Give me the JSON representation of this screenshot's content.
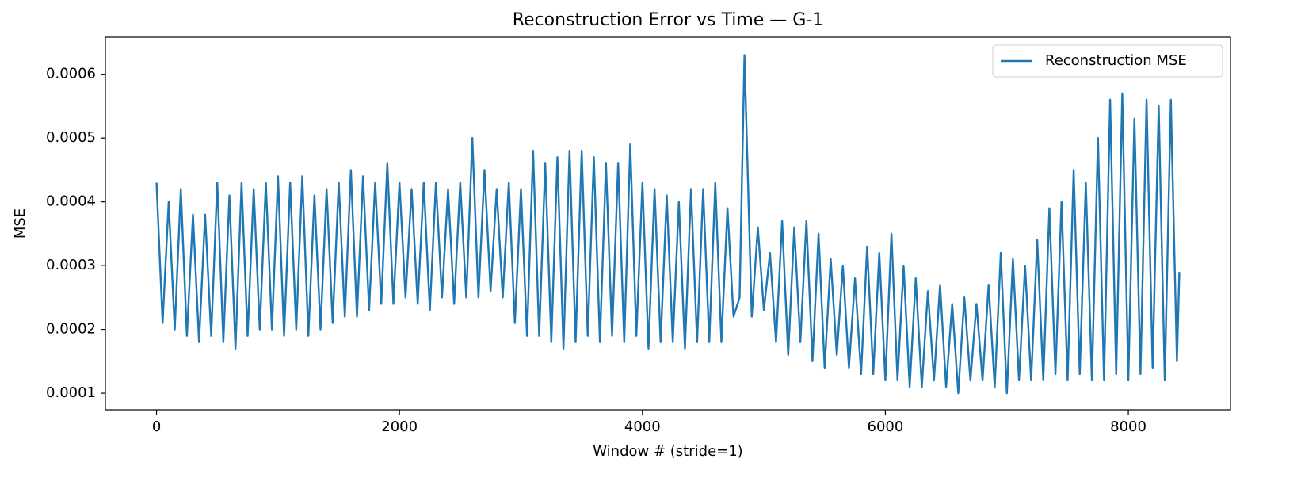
{
  "chart_data": {
    "type": "line",
    "title": "Reconstruction Error vs Time — G-1",
    "xlabel": "Window # (stride=1)",
    "ylabel": "MSE",
    "x": [
      0,
      50,
      100,
      150,
      200,
      250,
      300,
      350,
      400,
      450,
      500,
      550,
      600,
      650,
      700,
      750,
      800,
      850,
      900,
      950,
      1000,
      1050,
      1100,
      1150,
      1200,
      1250,
      1300,
      1350,
      1400,
      1450,
      1500,
      1550,
      1600,
      1650,
      1700,
      1750,
      1800,
      1850,
      1900,
      1950,
      2000,
      2050,
      2100,
      2150,
      2200,
      2250,
      2300,
      2350,
      2400,
      2450,
      2500,
      2550,
      2600,
      2650,
      2700,
      2750,
      2800,
      2850,
      2900,
      2950,
      3000,
      3050,
      3100,
      3150,
      3200,
      3250,
      3300,
      3350,
      3400,
      3450,
      3500,
      3550,
      3600,
      3650,
      3700,
      3750,
      3800,
      3850,
      3900,
      3950,
      4000,
      4050,
      4100,
      4150,
      4200,
      4250,
      4300,
      4350,
      4400,
      4450,
      4500,
      4550,
      4600,
      4650,
      4700,
      4750,
      4800,
      4840,
      4900,
      4950,
      5000,
      5050,
      5100,
      5150,
      5200,
      5250,
      5300,
      5350,
      5400,
      5450,
      5500,
      5550,
      5600,
      5650,
      5700,
      5750,
      5800,
      5850,
      5900,
      5950,
      6000,
      6050,
      6100,
      6150,
      6200,
      6250,
      6300,
      6350,
      6400,
      6450,
      6500,
      6550,
      6600,
      6650,
      6700,
      6750,
      6800,
      6850,
      6900,
      6950,
      7000,
      7050,
      7100,
      7150,
      7200,
      7250,
      7300,
      7350,
      7400,
      7450,
      7500,
      7550,
      7600,
      7650,
      7700,
      7750,
      7800,
      7850,
      7900,
      7950,
      8000,
      8050,
      8100,
      8150,
      8200,
      8250,
      8300,
      8350,
      8400,
      8420
    ],
    "series": [
      {
        "name": "Reconstruction MSE",
        "color": "#1f77b4",
        "values": [
          0.00043,
          0.00021,
          0.0004,
          0.0002,
          0.00042,
          0.00019,
          0.00038,
          0.00018,
          0.00038,
          0.00019,
          0.00043,
          0.00018,
          0.00041,
          0.00017,
          0.00043,
          0.00019,
          0.00042,
          0.0002,
          0.00043,
          0.0002,
          0.00044,
          0.00019,
          0.00043,
          0.0002,
          0.00044,
          0.00019,
          0.00041,
          0.0002,
          0.00042,
          0.00021,
          0.00043,
          0.00022,
          0.00045,
          0.00022,
          0.00044,
          0.00023,
          0.00043,
          0.00024,
          0.00046,
          0.00024,
          0.00043,
          0.00025,
          0.00042,
          0.00024,
          0.00043,
          0.00023,
          0.00043,
          0.00025,
          0.00042,
          0.00024,
          0.00043,
          0.00025,
          0.0005,
          0.00025,
          0.00045,
          0.00026,
          0.00042,
          0.00025,
          0.00043,
          0.00021,
          0.00042,
          0.00019,
          0.00048,
          0.00019,
          0.00046,
          0.00018,
          0.00047,
          0.00017,
          0.00048,
          0.00018,
          0.00048,
          0.00019,
          0.00047,
          0.00018,
          0.00046,
          0.00019,
          0.00046,
          0.00018,
          0.00049,
          0.00019,
          0.00043,
          0.00017,
          0.00042,
          0.00018,
          0.00041,
          0.00018,
          0.0004,
          0.00017,
          0.00042,
          0.00018,
          0.00042,
          0.00018,
          0.00043,
          0.00018,
          0.00039,
          0.00022,
          0.00025,
          0.00063,
          0.00022,
          0.00036,
          0.00023,
          0.00032,
          0.00018,
          0.00037,
          0.00016,
          0.00036,
          0.00018,
          0.00037,
          0.00015,
          0.00035,
          0.00014,
          0.00031,
          0.00016,
          0.0003,
          0.00014,
          0.00028,
          0.00013,
          0.00033,
          0.00013,
          0.00032,
          0.00012,
          0.00035,
          0.00012,
          0.0003,
          0.00011,
          0.00028,
          0.00011,
          0.00026,
          0.00012,
          0.00027,
          0.00011,
          0.00024,
          0.0001,
          0.00025,
          0.00012,
          0.00024,
          0.00012,
          0.00027,
          0.00011,
          0.00032,
          0.0001,
          0.00031,
          0.00012,
          0.0003,
          0.00012,
          0.00034,
          0.00012,
          0.00039,
          0.00013,
          0.0004,
          0.00012,
          0.00045,
          0.00013,
          0.00043,
          0.00012,
          0.0005,
          0.00012,
          0.00056,
          0.00013,
          0.00057,
          0.00012,
          0.00053,
          0.00013,
          0.00056,
          0.00014,
          0.00055,
          0.00012,
          0.00056,
          0.00015,
          0.00029
        ]
      }
    ],
    "xlim": [
      -421,
      8841
    ],
    "ylim": [
      7.4e-05,
      0.000658
    ],
    "xticks": [
      0,
      2000,
      4000,
      6000,
      8000
    ],
    "yticks": [
      0.0001,
      0.0002,
      0.0003,
      0.0004,
      0.0005,
      0.0006
    ],
    "legend": "upper right"
  }
}
